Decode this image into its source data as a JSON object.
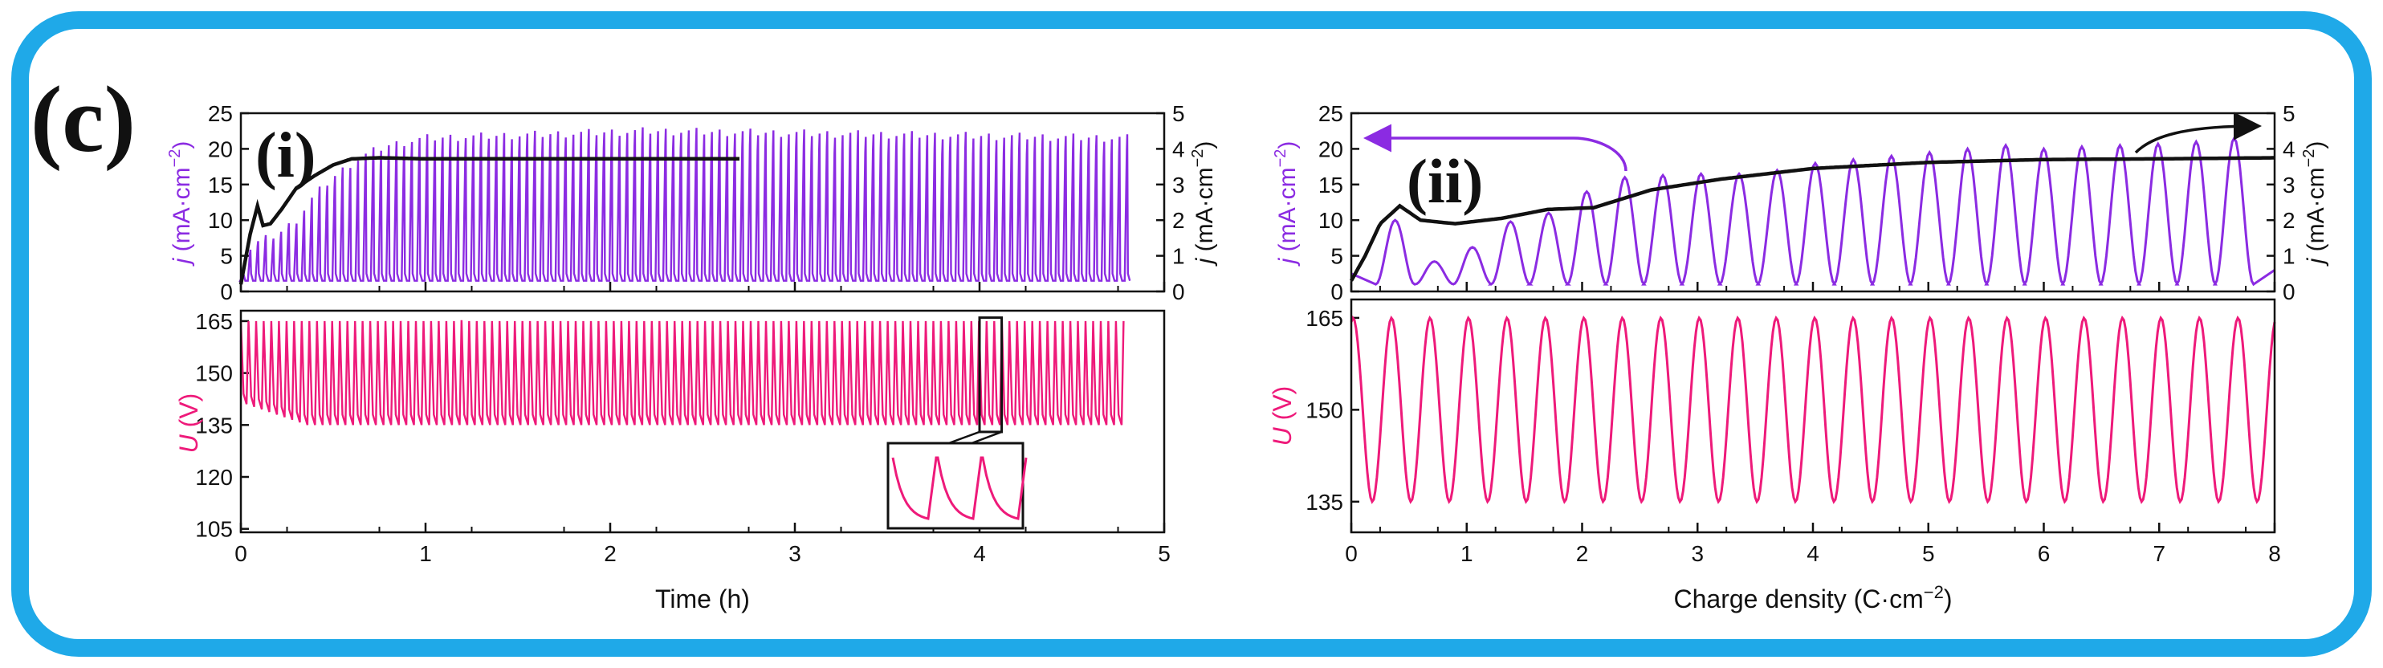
{
  "colors": {
    "frame": "#1fa9e8",
    "purple": "#8b2be2",
    "pink": "#ee1a7a",
    "black": "#111111"
  },
  "figure": {
    "panel_label": "(c)",
    "label_i": "(i)",
    "label_ii": "(ii)"
  },
  "chart_data": [
    {
      "id": "i-current",
      "type": "line",
      "title": "",
      "xlabel": "",
      "ylabel": "j (mA·cm⁻²)",
      "ylabel_right": "j (mA·cm⁻²)",
      "xlim": [
        0,
        5
      ],
      "ylim": [
        0,
        25
      ],
      "ylim_right": [
        0,
        5
      ],
      "yticks": [
        "0",
        "5",
        "10",
        "15",
        "20",
        "25"
      ],
      "yticks_right": [
        "0",
        "1",
        "2",
        "3",
        "4",
        "5"
      ],
      "series": [
        {
          "name": "j oscillation (left axis)",
          "color": "purple",
          "pulse_count": 116,
          "x_range": [
            0.01,
            4.8
          ],
          "baseline": 1.5,
          "envelope": {
            "x": [
              0.0,
              0.05,
              0.1,
              0.2,
              0.3,
              0.4,
              0.5,
              0.6,
              0.7,
              0.8,
              1.0,
              2.2,
              4.78
            ],
            "y": [
              2,
              6,
              7,
              8,
              10,
              13.5,
              16,
              18,
              19.5,
              20.5,
              21.5,
              22.5,
              21.5
            ]
          }
        },
        {
          "name": "j averaged (right axis)",
          "color": "black",
          "x": [
            0.0,
            0.05,
            0.09,
            0.12,
            0.16,
            0.22,
            0.3,
            0.4,
            0.5,
            0.6,
            0.75,
            1.0,
            1.5,
            2.7
          ],
          "y": [
            0.2,
            1.6,
            2.4,
            1.85,
            1.9,
            2.3,
            2.9,
            3.25,
            3.55,
            3.72,
            3.75,
            3.72,
            3.72,
            3.72
          ]
        }
      ]
    },
    {
      "id": "i-voltage",
      "type": "line",
      "title": "",
      "xlabel": "Time (h)",
      "ylabel": "U (V)",
      "xlim": [
        0,
        5
      ],
      "ylim": [
        104,
        168
      ],
      "xticks": [
        "0",
        "1",
        "2",
        "3",
        "4",
        "5"
      ],
      "yticks": [
        "105",
        "120",
        "135",
        "150",
        "165"
      ],
      "series": [
        {
          "name": "U",
          "color": "pink",
          "cycles": 116,
          "x_range": [
            0.0,
            4.78
          ],
          "min_V": 135,
          "max_V": 165,
          "initial_min_V": 141
        }
      ],
      "inset": {
        "zoom_window_x": [
          4.0,
          4.12
        ],
        "zoom_window_y": [
          133,
          166
        ],
        "description_cycles": 3
      }
    },
    {
      "id": "ii-current",
      "type": "line",
      "title": "",
      "xlabel": "",
      "ylabel": "j (mA·cm⁻²)",
      "ylabel_right": "j (mA·cm⁻²)",
      "xlim": [
        0,
        8
      ],
      "ylim": [
        0,
        25
      ],
      "ylim_right": [
        0,
        5
      ],
      "yticks": [
        "0",
        "5",
        "10",
        "15",
        "20",
        "25"
      ],
      "yticks_right": [
        "0",
        "1",
        "2",
        "3",
        "4",
        "5"
      ],
      "series": [
        {
          "name": "j oscillation (left axis)",
          "color": "purple",
          "peaks_x": [
            0.38,
            0.72,
            1.05,
            1.38,
            1.71,
            2.04,
            2.37,
            2.7,
            3.03,
            3.36,
            3.69,
            4.02,
            4.35,
            4.68,
            5.01,
            5.34,
            5.67,
            6.0,
            6.33,
            6.66,
            6.99,
            7.32,
            7.65
          ],
          "peaks_y": [
            10,
            4.2,
            6.2,
            9.8,
            11.0,
            14.0,
            16.0,
            16.3,
            16.5,
            16.5,
            17.0,
            18.0,
            18.5,
            19.0,
            19.5,
            20.0,
            20.5,
            20.0,
            20.3,
            20.5,
            20.7,
            21.0,
            21.5
          ],
          "baseline": 1
        },
        {
          "name": "j averaged (right axis)",
          "color": "black",
          "x": [
            0.0,
            0.12,
            0.25,
            0.42,
            0.6,
            0.9,
            1.3,
            1.7,
            2.1,
            2.6,
            3.2,
            4.0,
            5.0,
            6.0,
            7.0,
            8.0
          ],
          "y": [
            0.3,
            1.0,
            1.9,
            2.4,
            2.0,
            1.9,
            2.05,
            2.3,
            2.35,
            2.85,
            3.15,
            3.45,
            3.62,
            3.7,
            3.72,
            3.75
          ]
        }
      ],
      "annotations": [
        {
          "type": "arrow",
          "to": "left axis",
          "color": "purple"
        },
        {
          "type": "arrow",
          "to": "right axis",
          "color": "black"
        }
      ]
    },
    {
      "id": "ii-voltage",
      "type": "line",
      "title": "",
      "xlabel": "Charge density (C·cm⁻²)",
      "ylabel": "U (V)",
      "xlim": [
        0,
        8
      ],
      "ylim": [
        130,
        168
      ],
      "xticks": [
        "0",
        "1",
        "2",
        "3",
        "4",
        "5",
        "6",
        "7",
        "8"
      ],
      "yticks": [
        "135",
        "150",
        "165"
      ],
      "series": [
        {
          "name": "U",
          "color": "pink",
          "cycles": 24,
          "x_range": [
            0.0,
            8.0
          ],
          "min_V": 135,
          "max_V": 165
        }
      ]
    }
  ]
}
